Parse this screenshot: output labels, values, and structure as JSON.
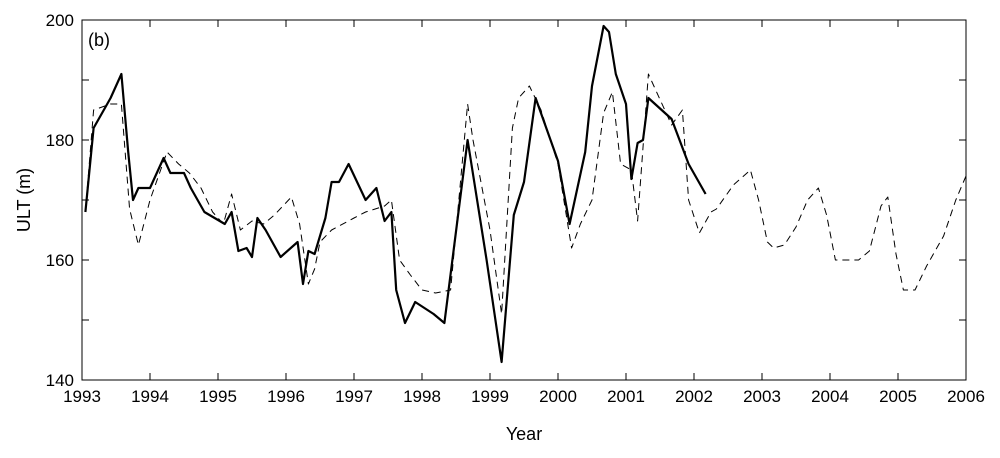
{
  "chart_data": {
    "type": "line",
    "panel_label": "(b)",
    "title": "",
    "xlabel": "Year",
    "ylabel": "ULT (m)",
    "xlim": [
      1993,
      2006
    ],
    "ylim": [
      140,
      200
    ],
    "x_ticks": [
      1993,
      1994,
      1995,
      1996,
      1997,
      1998,
      1999,
      2000,
      2001,
      2002,
      2003,
      2004,
      2005,
      2006
    ],
    "y_ticks": [
      140,
      160,
      180,
      200
    ],
    "grid": false,
    "legend": "none",
    "series": [
      {
        "style": "solid",
        "color": "#000000",
        "x": [
          1993.05,
          1993.17,
          1993.42,
          1993.58,
          1993.68,
          1993.75,
          1993.83,
          1994.0,
          1994.2,
          1994.3,
          1994.42,
          1994.5,
          1994.6,
          1994.8,
          1994.95,
          1995.1,
          1995.2,
          1995.3,
          1995.42,
          1995.5,
          1995.58,
          1995.7,
          1995.92,
          1996.17,
          1996.25,
          1996.33,
          1996.42,
          1996.58,
          1996.67,
          1996.78,
          1996.92,
          1997.17,
          1997.33,
          1997.45,
          1997.55,
          1997.62,
          1997.75,
          1997.9,
          1998.17,
          1998.33,
          1998.67,
          1998.95,
          1999.17,
          1999.35,
          1999.5,
          1999.67,
          2000.0,
          2000.17,
          2000.4,
          2000.5,
          2000.67,
          2000.75,
          2000.85,
          2001.0,
          2001.08,
          2001.17,
          2001.25,
          2001.33,
          2001.67,
          2001.92,
          2002.17
        ],
        "values": [
          168,
          182,
          187,
          191,
          178,
          170,
          172,
          172,
          177,
          174.5,
          174.5,
          174.5,
          172,
          168,
          167,
          166,
          168,
          161.5,
          162,
          160.5,
          167,
          165,
          160.5,
          163,
          156,
          161.5,
          161,
          167,
          173,
          173,
          176,
          170,
          172,
          166.5,
          168,
          155,
          149.5,
          153,
          151,
          149.5,
          180,
          160,
          143,
          167.5,
          173,
          187,
          176.5,
          166,
          178,
          189,
          199,
          198,
          191,
          186,
          173.5,
          179.5,
          180,
          187,
          183.5,
          176,
          171
        ]
      },
      {
        "style": "dashed",
        "color": "#000000",
        "x": [
          1993.05,
          1993.17,
          1993.42,
          1993.58,
          1993.7,
          1993.83,
          1994.0,
          1994.25,
          1994.42,
          1994.58,
          1994.75,
          1994.92,
          1995.08,
          1995.2,
          1995.33,
          1995.5,
          1995.67,
          1995.83,
          1996.08,
          1996.2,
          1996.33,
          1996.42,
          1996.5,
          1996.67,
          1997.0,
          1997.17,
          1997.45,
          1997.55,
          1997.67,
          1997.83,
          1998.0,
          1998.2,
          1998.42,
          1998.67,
          1998.75,
          1999.0,
          1999.17,
          1999.33,
          1999.42,
          1999.58,
          1999.75,
          2000.0,
          2000.2,
          2000.33,
          2000.5,
          2000.67,
          2000.8,
          2000.92,
          2001.08,
          2001.17,
          2001.33,
          2001.67,
          2001.83,
          2001.92,
          2002.08,
          2002.25,
          2002.33,
          2002.58,
          2002.83,
          2002.95,
          2003.08,
          2003.17,
          2003.33,
          2003.5,
          2003.67,
          2003.83,
          2003.95,
          2004.08,
          2004.25,
          2004.42,
          2004.58,
          2004.75,
          2004.85,
          2004.97,
          2005.08,
          2005.25,
          2005.42,
          2005.67,
          2005.85,
          2006.0
        ],
        "values": [
          168,
          185,
          186,
          186,
          168.5,
          162.5,
          170,
          178,
          176,
          174.5,
          172,
          168,
          166,
          171,
          165,
          166.5,
          166,
          167.5,
          170.5,
          166,
          156,
          158.5,
          163,
          165,
          167,
          168,
          169,
          170,
          160,
          157.5,
          155,
          154.5,
          155,
          186,
          180,
          165,
          151,
          182,
          187,
          189,
          185,
          176,
          162,
          166,
          170,
          184.5,
          188,
          176,
          175,
          166.5,
          191,
          182.5,
          185,
          170,
          164.5,
          168,
          168.5,
          172.5,
          175,
          170,
          163,
          162,
          162.5,
          165.5,
          170,
          172,
          167.5,
          160,
          160,
          160,
          161.5,
          169,
          170.5,
          161,
          155,
          155,
          159,
          164,
          170,
          174
        ]
      }
    ]
  }
}
